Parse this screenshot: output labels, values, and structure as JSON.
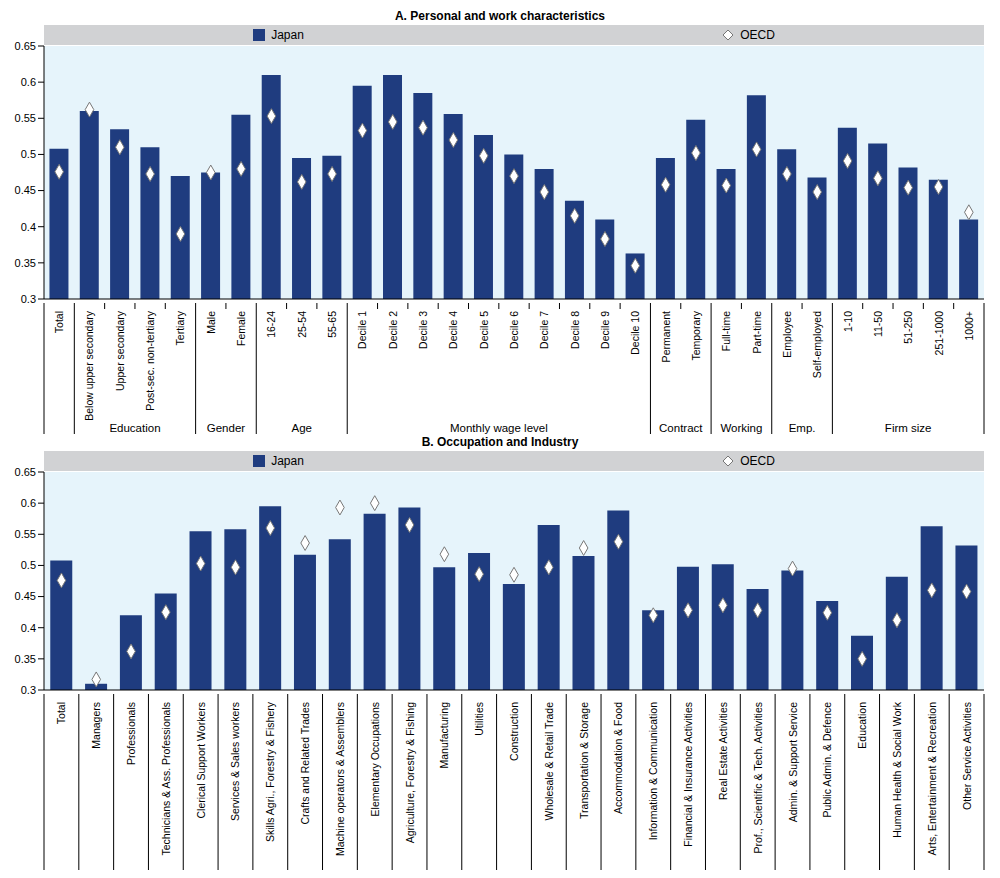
{
  "chart_data": [
    {
      "type": "bar",
      "title": "A. Personal and work characteristics",
      "legend": "top",
      "grid": false,
      "categories": [
        "Total",
        "Below upper secondary",
        "Upper secondary",
        "Post-sec. non-tertiary",
        "Tertiary",
        "Male",
        "Female",
        "16-24",
        "25-54",
        "55-65",
        "Decile 1",
        "Decile 2",
        "Decile 3",
        "Decile 4",
        "Decile 5",
        "Decile 6",
        "Decile 7",
        "Decile 8",
        "Decile 9",
        "Decile 10",
        "Permanent",
        "Temporary",
        "Full-time",
        "Part-time",
        "Employee",
        "Self-employed",
        "1-10",
        "11-50",
        "51-250",
        "251-1000",
        "1000+"
      ],
      "category_groups": [
        null,
        "Education",
        "Education",
        "Education",
        "Education",
        "Gender",
        "Gender",
        "Age",
        "Age",
        "Age",
        "Monthly wage level",
        "Monthly wage level",
        "Monthly wage level",
        "Monthly wage level",
        "Monthly wage level",
        "Monthly wage level",
        "Monthly wage level",
        "Monthly wage level",
        "Monthly wage level",
        "Monthly wage level",
        "Contract",
        "Contract",
        "Working",
        "Working",
        "Emp.",
        "Emp.",
        "Firm size",
        "Firm size",
        "Firm size",
        "Firm size",
        "Firm size"
      ],
      "series": [
        {
          "name": "Japan",
          "type": "bar",
          "color": "#1f3c7f",
          "values": [
            0.508,
            0.56,
            0.535,
            0.51,
            0.47,
            0.475,
            0.555,
            0.61,
            0.495,
            0.498,
            0.595,
            0.61,
            0.585,
            0.556,
            0.527,
            0.5,
            0.48,
            0.436,
            0.41,
            0.363,
            0.495,
            0.548,
            0.48,
            0.582,
            0.507,
            0.468,
            0.537,
            0.515,
            0.482,
            0.465,
            0.41
          ]
        },
        {
          "name": "OECD",
          "type": "scatter",
          "marker": "diamond",
          "color": "#ffffff",
          "values": [
            0.476,
            0.562,
            0.51,
            0.473,
            0.39,
            0.475,
            0.48,
            0.553,
            0.462,
            0.473,
            0.533,
            0.545,
            0.537,
            0.52,
            0.498,
            0.47,
            0.448,
            0.415,
            0.383,
            0.346,
            0.458,
            0.502,
            0.457,
            0.507,
            0.473,
            0.448,
            0.491,
            0.467,
            0.454,
            0.455,
            0.42
          ]
        }
      ],
      "ylim": [
        0.3,
        0.65
      ],
      "yticks": [
        0.3,
        0.35,
        0.4,
        0.45,
        0.5,
        0.55,
        0.6,
        0.65
      ]
    },
    {
      "type": "bar",
      "title": "B. Occupation and Industry",
      "legend": "top",
      "grid": false,
      "categories": [
        "Total",
        "Managers",
        "Professionals",
        "Technicians & Ass. Professionals",
        "Clerical Support Workers",
        "Services & Sales workers",
        "Skills Agri., Forestry & Fishery",
        "Crafts and Related Trades",
        "Machine operators & Assemblers",
        "Elementary Occupations",
        "Agriculture, Forestry & Fishing",
        "Manufacturing",
        "Utilities",
        "Construction",
        "Wholesale & Retail Trade",
        "Transportation & Storage",
        "Accommodation & Food",
        "Information & Communication",
        "Financial & Insurance Activities",
        "Real Estate Activities",
        "Prof., Scientific & Tech. Activities",
        "Admin. & Support Service",
        "Public Admin. & Defence",
        "Education",
        "Human Health & Social Work",
        "Arts, Entertainment & Recreation",
        "Other Service Activities"
      ],
      "series": [
        {
          "name": "Japan",
          "type": "bar",
          "color": "#1f3c7f",
          "values": [
            0.508,
            0.31,
            0.42,
            0.455,
            0.555,
            0.558,
            0.595,
            0.517,
            0.542,
            0.583,
            0.593,
            0.497,
            0.52,
            0.47,
            0.565,
            0.515,
            0.588,
            0.428,
            0.498,
            0.502,
            0.462,
            0.492,
            0.443,
            0.387,
            0.482,
            0.563,
            0.532
          ]
        },
        {
          "name": "OECD",
          "type": "scatter",
          "marker": "diamond",
          "color": "#ffffff",
          "values": [
            0.476,
            0.317,
            0.362,
            0.425,
            0.503,
            0.497,
            0.56,
            0.536,
            0.593,
            0.6,
            0.565,
            0.518,
            0.486,
            0.485,
            0.497,
            0.528,
            0.538,
            0.42,
            0.428,
            0.436,
            0.428,
            0.495,
            0.424,
            0.35,
            0.412,
            0.46,
            0.458
          ]
        }
      ],
      "ylim": [
        0.3,
        0.65
      ],
      "yticks": [
        0.3,
        0.35,
        0.4,
        0.45,
        0.5,
        0.55,
        0.6,
        0.65
      ]
    }
  ]
}
